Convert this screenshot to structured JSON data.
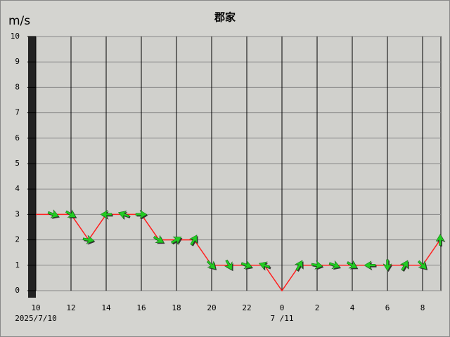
{
  "chart_data": {
    "type": "line",
    "title": "郡家",
    "y_unit": "m/s",
    "x": [
      10,
      11,
      12,
      13,
      14,
      15,
      16,
      17,
      18,
      19,
      20,
      21,
      22,
      23,
      24,
      25,
      26,
      27,
      28,
      29,
      30,
      31,
      32,
      33
    ],
    "series": [
      {
        "color": "#ff2020",
        "values": [
          3,
          3,
          3,
          2,
          3,
          3,
          3,
          2,
          2,
          2,
          1,
          1,
          1,
          1,
          0,
          1,
          1,
          1,
          1,
          1,
          1,
          1,
          1,
          2
        ]
      }
    ],
    "directions": [
      null,
      20,
      30,
      10,
      180,
      200,
      0,
      30,
      330,
      300,
      45,
      60,
      20,
      200,
      null,
      300,
      10,
      20,
      30,
      180,
      90,
      300,
      45,
      270
    ],
    "arrow_color": "#22cc22",
    "xlim": [
      10,
      33
    ],
    "ylim": [
      0,
      10
    ],
    "yticks": [
      0,
      1,
      2,
      3,
      4,
      5,
      6,
      7,
      8,
      9,
      10
    ],
    "xticks": [
      10,
      12,
      14,
      16,
      18,
      20,
      22,
      {
        "value": 24,
        "label": "0"
      },
      {
        "value": 26,
        "label": "2"
      },
      {
        "value": 28,
        "label": "4"
      },
      {
        "value": 30,
        "label": "6"
      },
      {
        "value": 32,
        "label": "8"
      }
    ],
    "date_labels": [
      {
        "x": 10,
        "label": "2025/7/10"
      },
      {
        "x": 24,
        "label": "7 /11"
      }
    ]
  }
}
